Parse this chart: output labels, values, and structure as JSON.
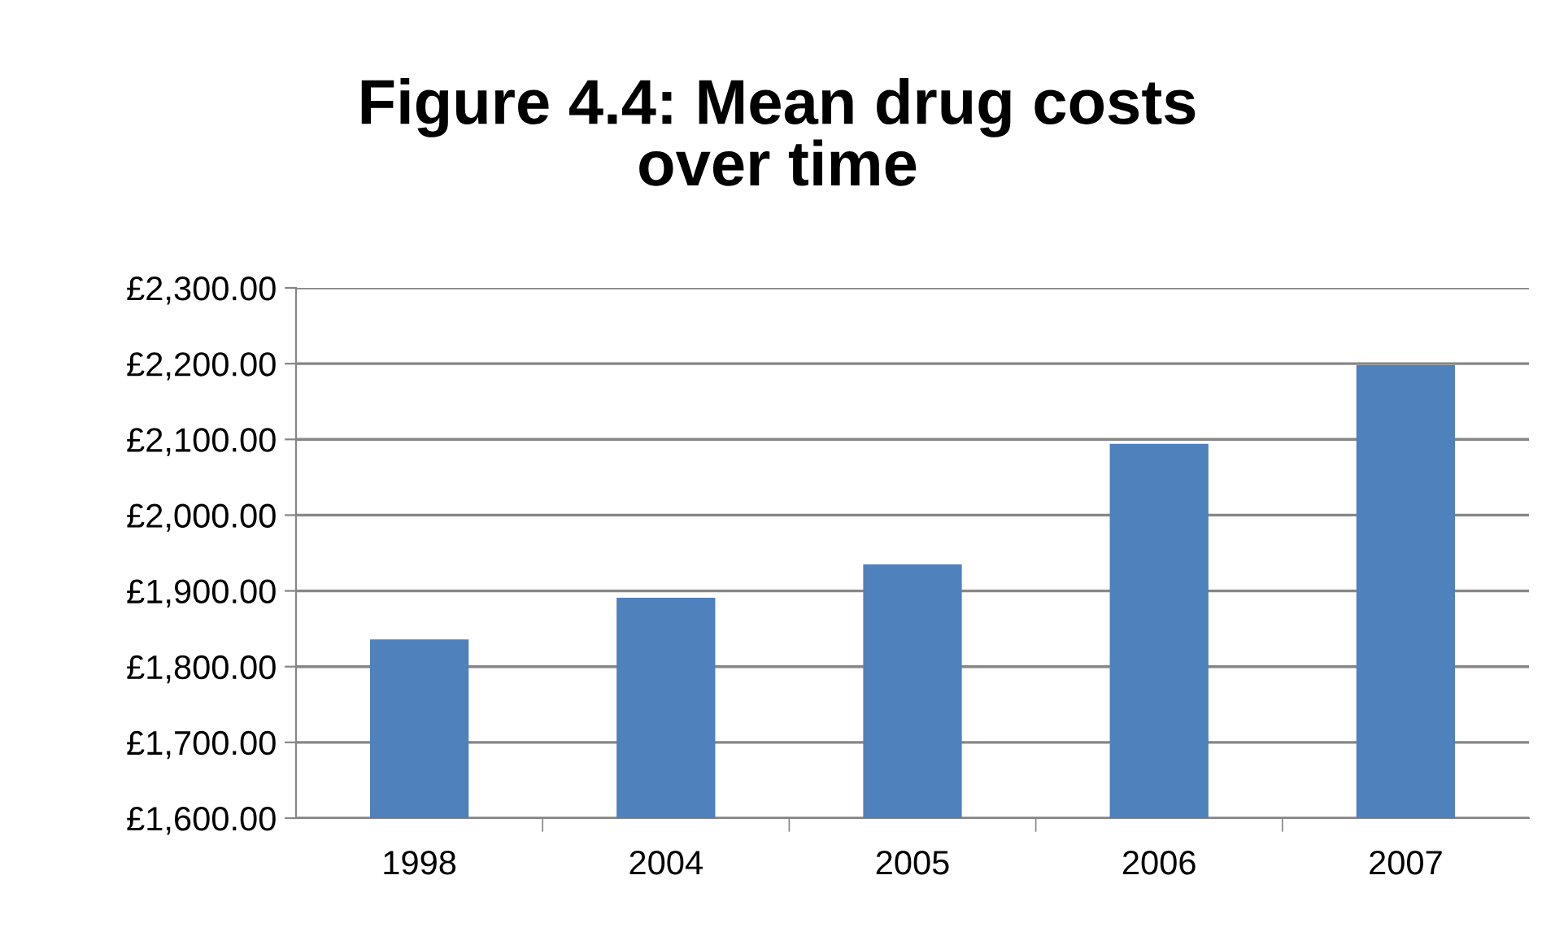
{
  "chart_data": {
    "type": "bar",
    "title": "Figure 4.4: Mean drug costs\nover time",
    "categories": [
      "1998",
      "2004",
      "2005",
      "2006",
      "2007"
    ],
    "values": [
      1836,
      1891,
      1935,
      2094,
      2198
    ],
    "color": "#4f81bd",
    "ylim": [
      1600,
      2300
    ],
    "yticks": [
      {
        "value": 1600,
        "label": "£1,600.00"
      },
      {
        "value": 1700,
        "label": "£1,700.00"
      },
      {
        "value": 1800,
        "label": "£1,800.00"
      },
      {
        "value": 1900,
        "label": "£1,900.00"
      },
      {
        "value": 2000,
        "label": "£2,000.00"
      },
      {
        "value": 2100,
        "label": "£2,100.00"
      },
      {
        "value": 2200,
        "label": "£2,200.00"
      },
      {
        "value": 2300,
        "label": "£2,300.00"
      }
    ],
    "grid": "y"
  }
}
